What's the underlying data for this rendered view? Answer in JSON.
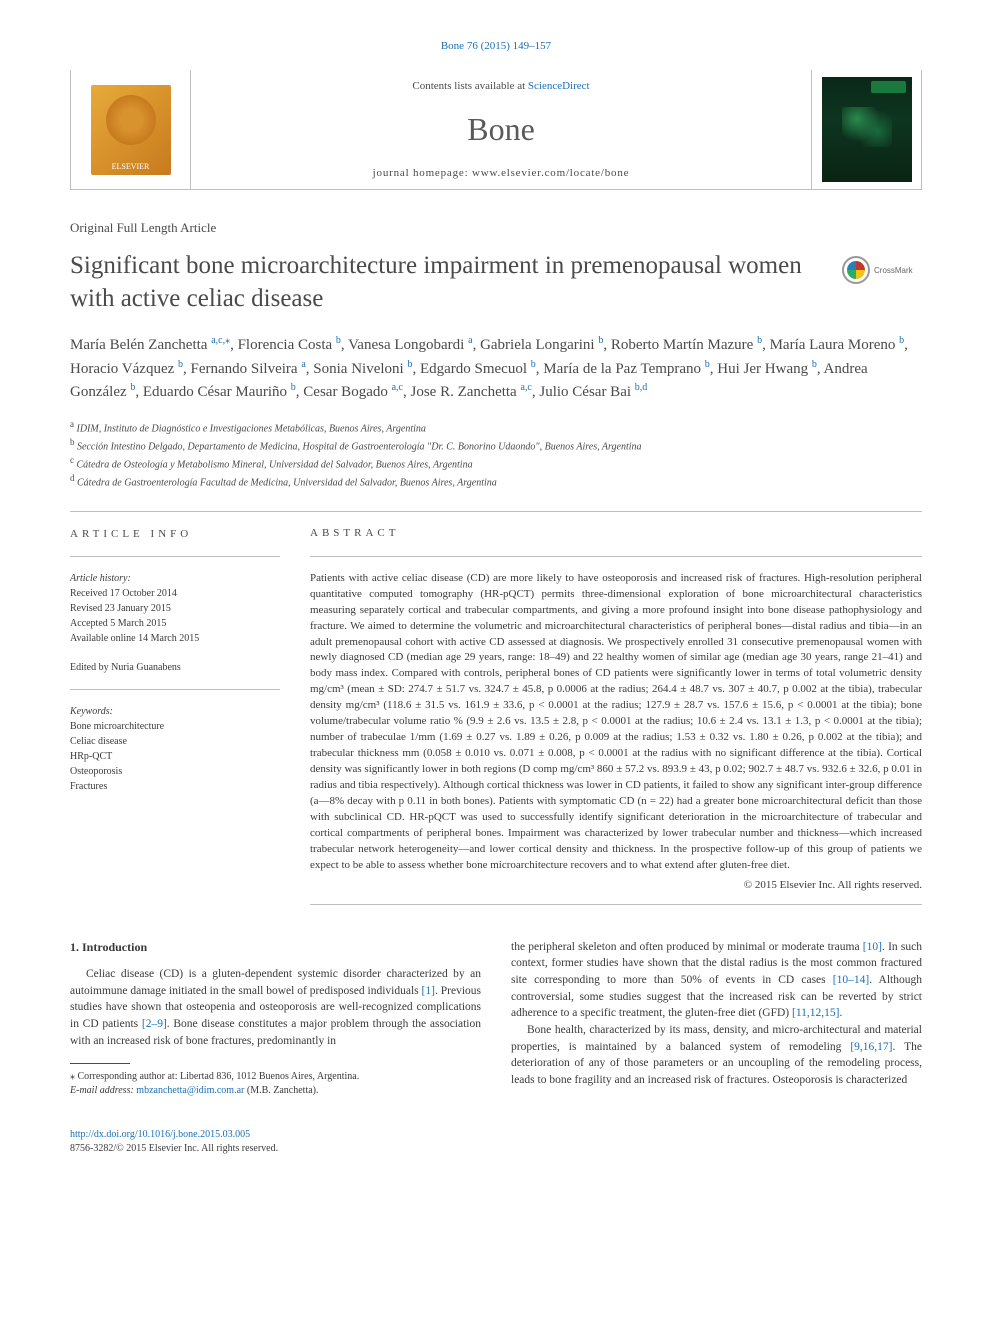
{
  "top_citation": "Bone 76 (2015) 149–157",
  "header": {
    "contents_prefix": "Contents lists available at ",
    "contents_link": "ScienceDirect",
    "journal": "Bone",
    "homepage_prefix": "journal homepage: ",
    "homepage": "www.elsevier.com/locate/bone",
    "elsevier_label": "ELSEVIER",
    "crossmark": "CrossMark",
    "cover_label": "Bone"
  },
  "article_type": "Original Full Length Article",
  "title": "Significant bone microarchitecture impairment in premenopausal women with active celiac disease",
  "authors_html": "María Belén Zanchetta |a,c,*|, Florencia Costa |b|, Vanesa Longobardi |a|, Gabriela Longarini |b|, Roberto Martín Mazure |b|, María Laura Moreno |b|, Horacio Vázquez |b|, Fernando Silveira |a|, Sonia Niveloni |b|, Edgardo Smecuol |b|, María de la Paz Temprano |b|, Hui Jer Hwang |b|, Andrea González |b|, Eduardo César Mauriño |b|, Cesar Bogado |a,c|, Jose R. Zanchetta |a,c|, Julio César Bai |b,d|",
  "affiliations": [
    {
      "lbl": "a",
      "text": "IDIM, Instituto de Diagnóstico e Investigaciones Metabólicas, Buenos Aires, Argentina"
    },
    {
      "lbl": "b",
      "text": "Sección Intestino Delgado, Departamento de Medicina, Hospital de Gastroenterología \"Dr. C. Bonorino Udaondo\", Buenos Aires, Argentina"
    },
    {
      "lbl": "c",
      "text": "Cátedra de Osteología y Metabolismo Mineral, Universidad del Salvador, Buenos Aires, Argentina"
    },
    {
      "lbl": "d",
      "text": "Cátedra de Gastroenterología Facultad de Medicina, Universidad del Salvador, Buenos Aires, Argentina"
    }
  ],
  "article_info": {
    "head": "ARTICLE INFO",
    "history_label": "Article history:",
    "history": [
      "Received 17 October 2014",
      "Revised 23 January 2015",
      "Accepted 5 March 2015",
      "Available online 14 March 2015"
    ],
    "edited": "Edited by Nuria Guanabens",
    "keywords_label": "Keywords:",
    "keywords": [
      "Bone microarchitecture",
      "Celiac disease",
      "HRp-QCT",
      "Osteoporosis",
      "Fractures"
    ]
  },
  "abstract": {
    "head": "ABSTRACT",
    "text": "Patients with active celiac disease (CD) are more likely to have osteoporosis and increased risk of fractures. High-resolution peripheral quantitative computed tomography (HR-pQCT) permits three-dimensional exploration of bone microarchitectural characteristics measuring separately cortical and trabecular compartments, and giving a more profound insight into bone disease pathophysiology and fracture. We aimed to determine the volumetric and microarchitectural characteristics of peripheral bones—distal radius and tibia—in an adult premenopausal cohort with active CD assessed at diagnosis. We prospectively enrolled 31 consecutive premenopausal women with newly diagnosed CD (median age 29 years, range: 18–49) and 22 healthy women of similar age (median age 30 years, range 21–41) and body mass index. Compared with controls, peripheral bones of CD patients were significantly lower in terms of total volumetric density mg/cm³ (mean ± SD: 274.7 ± 51.7 vs. 324.7 ± 45.8, p 0.0006 at the radius; 264.4 ± 48.7 vs. 307 ± 40.7, p 0.002 at the tibia), trabecular density mg/cm³ (118.6 ± 31.5 vs. 161.9 ± 33.6, p < 0.0001 at the radius; 127.9 ± 28.7 vs. 157.6 ± 15.6, p < 0.0001 at the tibia); bone volume/trabecular volume ratio % (9.9 ± 2.6 vs. 13.5 ± 2.8, p < 0.0001 at the radius; 10.6 ± 2.4 vs. 13.1 ± 1.3, p < 0.0001 at the tibia); number of trabeculae 1/mm (1.69 ± 0.27 vs. 1.89 ± 0.26, p 0.009 at the radius; 1.53 ± 0.32 vs. 1.80 ± 0.26, p 0.002 at the tibia); and trabecular thickness mm (0.058 ± 0.010 vs. 0.071 ± 0.008, p < 0.0001 at the radius with no significant difference at the tibia). Cortical density was significantly lower in both regions (D comp mg/cm³ 860 ± 57.2 vs. 893.9 ± 43, p 0.02; 902.7 ± 48.7 vs. 932.6 ± 32.6, p 0.01 in radius and tibia respectively). Although cortical thickness was lower in CD patients, it failed to show any significant inter-group difference (a—8% decay with p 0.11 in both bones). Patients with symptomatic CD (n = 22) had a greater bone microarchitectural deficit than those with subclinical CD. HR-pQCT was used to successfully identify significant deterioration in the microarchitecture of trabecular and cortical compartments of peripheral bones. Impairment was characterized by lower trabecular number and thickness—which increased trabecular network heterogeneity—and lower cortical density and thickness. In the prospective follow-up of this group of patients we expect to be able to assess whether bone microarchitecture recovers and to what extend after gluten-free diet.",
    "copyright": "© 2015 Elsevier Inc. All rights reserved."
  },
  "intro": {
    "head": "1. Introduction",
    "p1_a": "Celiac disease (CD) is a gluten-dependent systemic disorder characterized by an autoimmune damage initiated in the small bowel of predisposed individuals ",
    "p1_ref1": "[1]",
    "p1_b": ". Previous studies have shown that osteopenia and osteoporosis are well-recognized complications in CD patients ",
    "p1_ref2": "[2–9]",
    "p1_c": ". Bone disease constitutes a major problem through the association with an increased risk of bone fractures, predominantly in",
    "p2_a": "the peripheral skeleton and often produced by minimal or moderate trauma ",
    "p2_ref1": "[10]",
    "p2_b": ". In such context, former studies have shown that the distal radius is the most common fractured site corresponding to more than 50% of events in CD cases ",
    "p2_ref2": "[10–14]",
    "p2_c": ". Although controversial, some studies suggest that the increased risk can be reverted by strict adherence to a specific treatment, the gluten-free diet (GFD) ",
    "p2_ref3": "[11,12,15]",
    "p2_d": ".",
    "p3_a": "Bone health, characterized by its mass, density, and micro-architectural and material properties, is maintained by a balanced system of remodeling ",
    "p3_ref1": "[9,16,17]",
    "p3_b": ". The deterioration of any of those parameters or an uncoupling of the remodeling process, leads to bone fragility and an increased risk of fractures. Osteoporosis is characterized"
  },
  "footnote": {
    "corr": "⁎ Corresponding author at: Libertad 836, 1012 Buenos Aires, Argentina.",
    "email_label": "E-mail address: ",
    "email": "mbzanchetta@idim.com.ar",
    "email_suffix": " (M.B. Zanchetta)."
  },
  "footer": {
    "doi": "http://dx.doi.org/10.1016/j.bone.2015.03.005",
    "issn": "8756-3282/© 2015 Elsevier Inc. All rights reserved."
  },
  "colors": {
    "link": "#1a6fb5",
    "text": "#3a3a3a",
    "rule": "#bfbfbf"
  }
}
